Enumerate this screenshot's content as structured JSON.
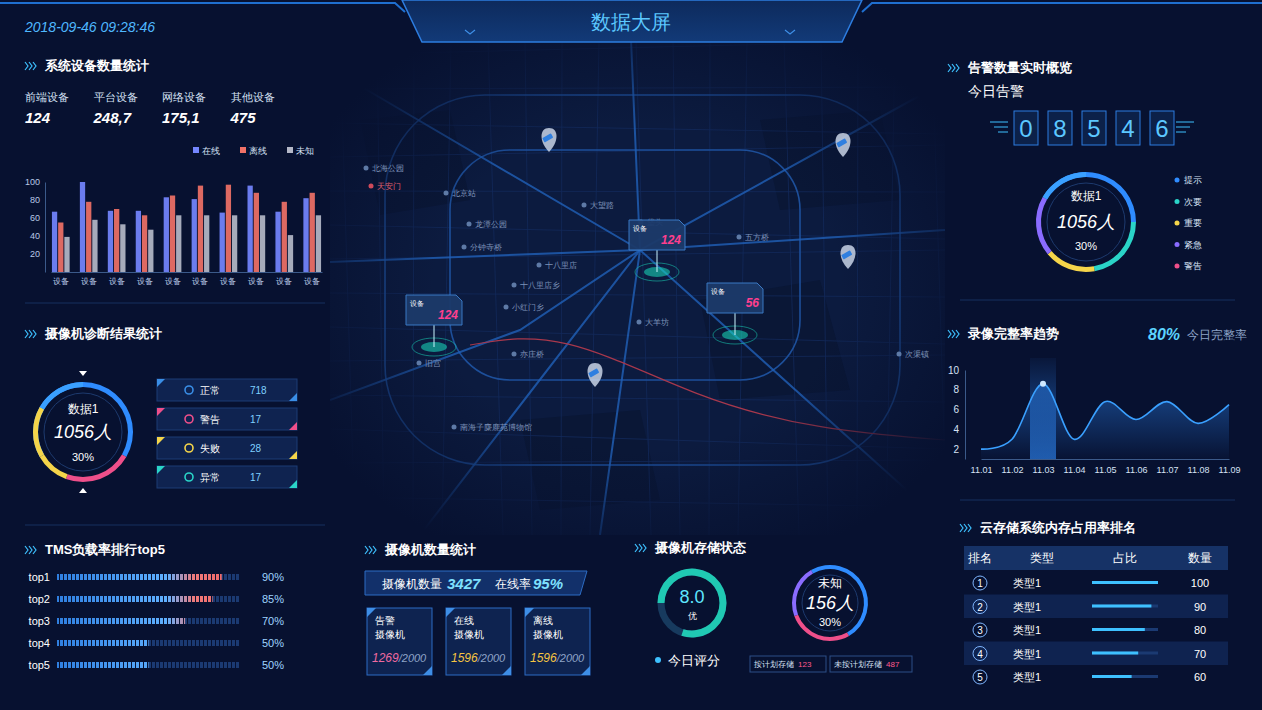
{
  "header": {
    "datetime": "2018-09-46 09:28:46",
    "title": "数据大屏"
  },
  "device_stats": {
    "items": [
      {
        "label": "前端设备",
        "value": "124"
      },
      {
        "label": "平台设备",
        "value": "248,7"
      },
      {
        "label": "网络设备",
        "value": "175,1"
      },
      {
        "label": "其他设备",
        "value": "475"
      }
    ]
  },
  "chart_data": [
    {
      "type": "bar",
      "title": "系统设备数量统计",
      "categories": [
        "设备",
        "设备",
        "设备",
        "设备",
        "设备",
        "设备",
        "设备",
        "设备",
        "设备",
        "设备"
      ],
      "series": [
        {
          "name": "在线",
          "color": "#7486ff",
          "values": [
            67,
            100,
            68,
            68,
            83,
            81,
            66,
            96,
            67,
            82
          ]
        },
        {
          "name": "离线",
          "color": "#f07167",
          "values": [
            55,
            78,
            70,
            63,
            85,
            96,
            97,
            88,
            78,
            88
          ]
        },
        {
          "name": "未知",
          "color": "#b4b8c8",
          "values": [
            39,
            58,
            53,
            47,
            63,
            63,
            63,
            63,
            41,
            63
          ]
        }
      ],
      "ylim": [
        0,
        100
      ],
      "yticks": [
        20,
        40,
        60,
        80,
        100
      ],
      "grid": false,
      "legend": "top-right"
    },
    {
      "type": "bar",
      "title": "TMS负载率排行top5",
      "orientation": "horizontal",
      "categories": [
        "top1",
        "top2",
        "top3",
        "top4",
        "top5"
      ],
      "values": [
        90,
        85,
        70,
        50,
        50
      ],
      "value_labels": [
        "90%",
        "85%",
        "70%",
        "50%",
        "50%"
      ],
      "xlim": [
        0,
        100
      ],
      "data_labels": true,
      "tick_labels": "y"
    },
    {
      "type": "line",
      "title": "录像完整率趋势",
      "annotations": [
        "80%",
        "今日完整率"
      ],
      "categories": [
        "11.01",
        "11.02",
        "11.03",
        "11.04",
        "11.05",
        "11.06",
        "11.07",
        "11.08",
        "11.09"
      ],
      "values": [
        2,
        3,
        8.6,
        3,
        6.8,
        5,
        6.8,
        4.6,
        6.5
      ],
      "color": "#3aa0ff",
      "ylim": [
        1,
        10
      ],
      "yticks": [
        2,
        4,
        6,
        8,
        10
      ],
      "grid": false
    }
  ],
  "camera_diagnosis": {
    "title": "摄像机诊断结果统计",
    "ring": {
      "label": "数据1",
      "value": "1056人",
      "percent": "30%"
    },
    "items": [
      {
        "label": "正常",
        "value": 718,
        "color": "#3a8ee6"
      },
      {
        "label": "警告",
        "value": 17,
        "color": "#ee4f8a"
      },
      {
        "label": "失败",
        "value": 28,
        "color": "#f5d54a"
      },
      {
        "label": "异常",
        "value": 17,
        "color": "#2ad4c8"
      }
    ]
  },
  "camera_count": {
    "title": "摄像机数量统计",
    "total_label": "摄像机数量",
    "total": 3427,
    "online_label": "在线率",
    "online_rate": "95%",
    "boxes": [
      {
        "label_lines": [
          "告警",
          "摄像机"
        ],
        "value": 1269,
        "total_label": "/2000",
        "color": "#f06aa0"
      },
      {
        "label_lines": [
          "在线",
          "摄像机"
        ],
        "value": 1596,
        "total_label": "/2000",
        "color": "#f5c542"
      },
      {
        "label_lines": [
          "离线",
          "摄像机"
        ],
        "value": 1596,
        "total_label": "/2000",
        "color": "#f5c542"
      }
    ]
  },
  "camera_storage": {
    "title": "摄像机存储状态",
    "score": {
      "value": 8.0,
      "label": "8.0",
      "grade": "优",
      "range": [
        0,
        10
      ],
      "caption": "今日评分"
    },
    "ring": {
      "label": "未知",
      "value": "156人",
      "percent": "30%"
    },
    "legend": [
      {
        "label": "按计划存储",
        "value": 123
      },
      {
        "label": "未按计划存储",
        "value": 487
      }
    ]
  },
  "alarm_overview": {
    "title": "告警数量实时概览",
    "subtitle": "今日告警",
    "count_digits": [
      "0",
      "8",
      "5",
      "4",
      "6"
    ],
    "ring": {
      "label": "数据1",
      "value": "1056人",
      "percent": "30%"
    },
    "legend": [
      {
        "label": "提示",
        "color": "#2f8cff"
      },
      {
        "label": "次要",
        "color": "#2ad4c8"
      },
      {
        "label": "重要",
        "color": "#f5d54a"
      },
      {
        "label": "紧急",
        "color": "#8a6cff"
      },
      {
        "label": "警告",
        "color": "#ee4f8a"
      }
    ]
  },
  "storage_ranking": {
    "title": "云存储系统内存占用率排名",
    "columns": [
      "排名",
      "类型",
      "占比",
      "数量"
    ],
    "rows": [
      {
        "rank": 1,
        "type": "类型1",
        "count": 100
      },
      {
        "rank": 2,
        "type": "类型1",
        "count": 90
      },
      {
        "rank": 3,
        "type": "类型1",
        "count": 80
      },
      {
        "rank": 4,
        "type": "类型1",
        "count": 70
      },
      {
        "rank": 5,
        "type": "类型1",
        "count": 60
      }
    ]
  },
  "map": {
    "markers": [
      {
        "label": "设备",
        "value": 124
      },
      {
        "label": "设备",
        "value": 124
      },
      {
        "label": "设备",
        "value": 56
      }
    ],
    "places": [
      "北海公园",
      "天安门",
      "北京站",
      "龙潭公园",
      "大望路",
      "十八里店",
      "十八里店乡",
      "小红门乡",
      "分钟寺桥",
      "旧宫",
      "亦庄桥",
      "大羊坊",
      "南海子麋鹿苑博物馆",
      "次渠镇",
      "五方桥",
      "垡头"
    ]
  }
}
